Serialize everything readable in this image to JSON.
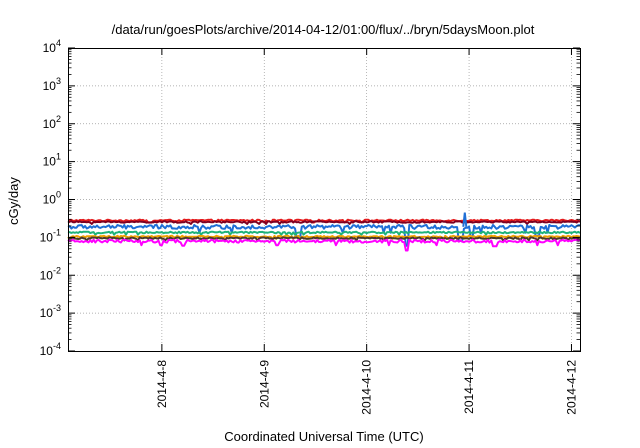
{
  "chart_data": {
    "type": "line",
    "title": "/data/run/goesPlots/archive/2014-04-12/01:00/flux/../bryn/5daysMoon.plot",
    "xlabel": "Coordinated Universal Time (UTC)",
    "ylabel": "cGy/day",
    "yscale": "log",
    "ylim_exp": [
      -4,
      4
    ],
    "y_ticks": [
      {
        "base": "10",
        "exp": "-4"
      },
      {
        "base": "10",
        "exp": "-3"
      },
      {
        "base": "10",
        "exp": "-2"
      },
      {
        "base": "10",
        "exp": "-1"
      },
      {
        "base": "10",
        "exp": "0"
      },
      {
        "base": "10",
        "exp": "1"
      },
      {
        "base": "10",
        "exp": "2"
      },
      {
        "base": "10",
        "exp": "3"
      },
      {
        "base": "10",
        "exp": "4"
      }
    ],
    "xlim": [
      "2014-04-07 02:00",
      "2014-04-12 02:00"
    ],
    "x_ticks": [
      "2014-4-8",
      "2014-4-9",
      "2014-4-10",
      "2014-4-11",
      "2014-4-12"
    ],
    "grid": true,
    "series": [
      {
        "color": "#e41a1c",
        "level": 0.28,
        "noise": 0.05,
        "dips": []
      },
      {
        "color": "#7f0020",
        "level": 0.255,
        "noise": 0.045,
        "dips": []
      },
      {
        "color": "#1f6fd6",
        "level": 0.19,
        "noise": 0.12,
        "dips": [
          [
            "2014-04-10 09:30",
            0.06
          ],
          [
            "2014-04-10 22:00",
            0.08
          ],
          [
            "2014-04-09 08:00",
            0.1
          ],
          [
            "2014-04-11 00:30",
            0.1
          ],
          [
            "2014-04-11 16:00",
            0.11
          ]
        ]
      },
      {
        "color": "#1fb37a",
        "level": 0.135,
        "noise": 0.05,
        "dips": []
      },
      {
        "color": "#f0a000",
        "level": 0.105,
        "noise": 0.05,
        "dips": []
      },
      {
        "color": "#4a3a2a",
        "level": 0.095,
        "noise": 0.05,
        "dips": []
      },
      {
        "color": "#ff00ff",
        "level": 0.08,
        "noise": 0.09,
        "dips": [
          [
            "2014-04-10 09:30",
            0.045
          ],
          [
            "2014-04-08 05:00",
            0.06
          ],
          [
            "2014-04-09 03:00",
            0.062
          ],
          [
            "2014-04-11 06:00",
            0.058
          ]
        ]
      }
    ],
    "spikes": [
      [
        "2014-04-10 23:00",
        0.45,
        "#1f6fd6"
      ]
    ]
  }
}
